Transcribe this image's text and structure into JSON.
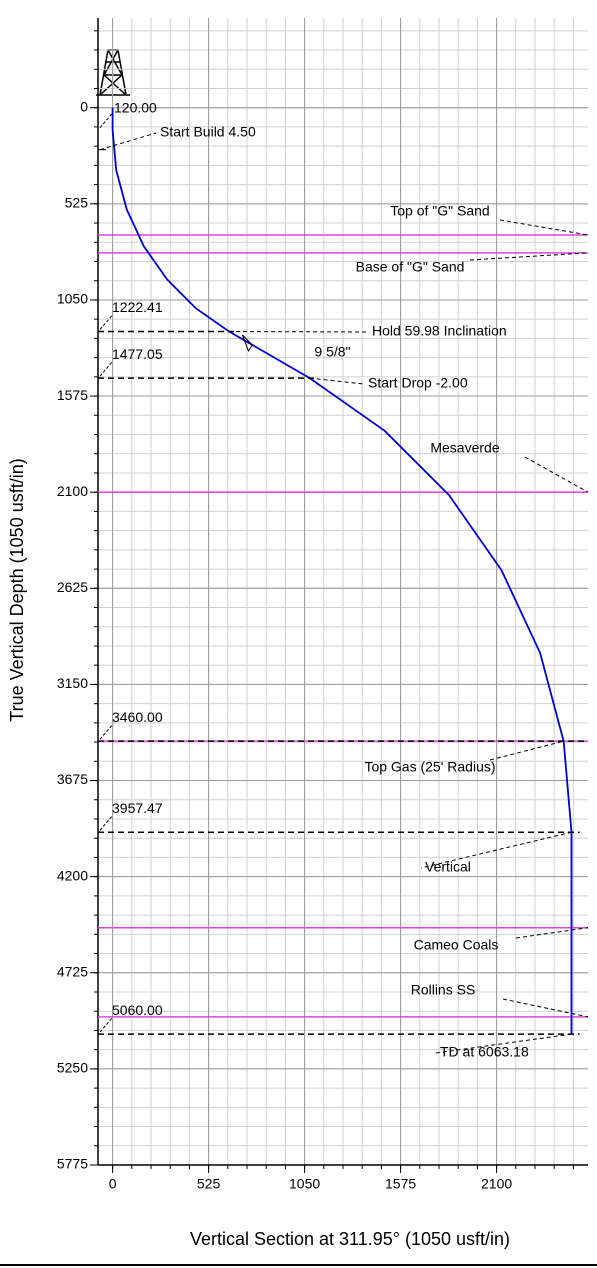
{
  "chart_data": {
    "type": "line",
    "xlabel": "Vertical Section at 311.95° (1050 usft/in)",
    "ylabel": "True Vertical Depth (1050 usft/in)",
    "x": [
      0,
      0,
      19.3,
      76.8,
      170.6,
      297.9,
      454.8,
      637,
      1078,
      1487,
      1840,
      2127,
      2338,
      2467,
      2510,
      2510
    ],
    "values": [
      0,
      120,
      341,
      555,
      757,
      938,
      1095,
      1222.41,
      1477.05,
      1764,
      2116,
      2526,
      2978,
      3461,
      3957.47,
      5060
    ],
    "color": "#0000cc",
    "xlim": [
      -80,
      2600
    ],
    "ylim": [
      -490,
      5775
    ],
    "xticks": [
      0,
      525,
      1050,
      1575,
      2100
    ],
    "yticks": [
      0,
      525,
      1050,
      1575,
      2100,
      2625,
      3150,
      3675,
      4200,
      4725,
      5250,
      5775
    ],
    "grid": true,
    "formation_color": "#dd44dd",
    "formations": [
      {
        "name": "Top of \"G\" Sand",
        "value": 695
      },
      {
        "name": "Base of \"G\" Sand",
        "value": 793
      },
      {
        "name": "Mesaverde",
        "value": 2100
      },
      {
        "name": "Top Gas (25' Radius)",
        "value": 3460
      },
      {
        "name": "Cameo Coals",
        "value": 4479
      },
      {
        "name": "Rollins SS",
        "value": 4966
      }
    ],
    "markers": [
      {
        "value": 120,
        "label": "120.00",
        "text": "Start Build 4.50"
      },
      {
        "value": 1222.41,
        "text": "Hold 59.98 Inclination"
      },
      {
        "value": 1477.05,
        "text": "Start Drop -2.00"
      },
      {
        "value": 3460,
        "label": "3460.00"
      },
      {
        "value": 3957.47,
        "text": "Vertical"
      },
      {
        "value": 5060,
        "label": "5060.00",
        "text": "TD at 6063.18"
      }
    ],
    "casing": {
      "text": "9 5/8\"",
      "value": 1296
    }
  }
}
